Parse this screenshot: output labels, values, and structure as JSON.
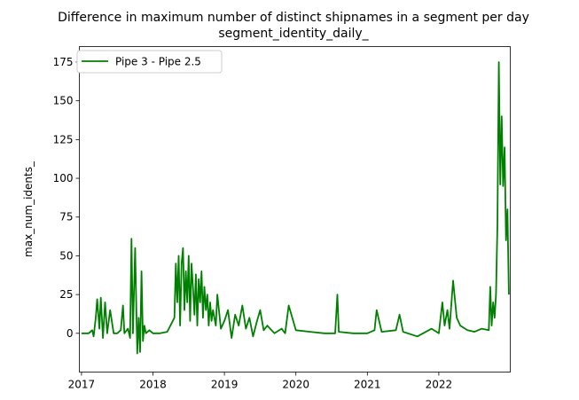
{
  "chart_data": {
    "type": "line",
    "title": "Difference in maximum number of distinct shipnames in a segment per day",
    "subtitle": "segment_identity_daily_",
    "xlabel": "",
    "ylabel": "max_num_idents_",
    "x_tick_labels": [
      "2017",
      "2018",
      "2019",
      "2020",
      "2021",
      "2022"
    ],
    "y_tick_labels": [
      "0",
      "25",
      "50",
      "75",
      "100",
      "125",
      "150",
      "175"
    ],
    "x_ticks": [
      2017,
      2018,
      2019,
      2020,
      2021,
      2022
    ],
    "y_ticks": [
      0,
      25,
      50,
      75,
      100,
      125,
      150,
      175
    ],
    "xlim": [
      2016.97,
      2023.0
    ],
    "ylim": [
      -25,
      185
    ],
    "grid": false,
    "legend_position": "upper-left",
    "series": [
      {
        "name": "Pipe 3 - Pipe 2.5",
        "color": "#008000",
        "x": [
          2017.0,
          2017.1,
          2017.15,
          2017.17,
          2017.2,
          2017.22,
          2017.25,
          2017.27,
          2017.3,
          2017.33,
          2017.36,
          2017.4,
          2017.45,
          2017.5,
          2017.55,
          2017.58,
          2017.6,
          2017.65,
          2017.68,
          2017.7,
          2017.72,
          2017.75,
          2017.78,
          2017.8,
          2017.82,
          2017.84,
          2017.86,
          2017.88,
          2017.9,
          2017.95,
          2018.0,
          2018.05,
          2018.1,
          2018.2,
          2018.3,
          2018.32,
          2018.34,
          2018.36,
          2018.38,
          2018.4,
          2018.42,
          2018.44,
          2018.46,
          2018.48,
          2018.5,
          2018.52,
          2018.54,
          2018.56,
          2018.58,
          2018.6,
          2018.62,
          2018.64,
          2018.66,
          2018.68,
          2018.7,
          2018.72,
          2018.74,
          2018.76,
          2018.78,
          2018.8,
          2018.82,
          2018.84,
          2018.86,
          2018.88,
          2018.9,
          2018.95,
          2019.0,
          2019.05,
          2019.1,
          2019.15,
          2019.2,
          2019.25,
          2019.3,
          2019.35,
          2019.4,
          2019.45,
          2019.5,
          2019.55,
          2019.6,
          2019.7,
          2019.8,
          2019.85,
          2019.9,
          2020.0,
          2020.2,
          2020.4,
          2020.55,
          2020.58,
          2020.6,
          2020.8,
          2021.0,
          2021.1,
          2021.13,
          2021.2,
          2021.4,
          2021.45,
          2021.5,
          2021.7,
          2021.9,
          2022.0,
          2022.05,
          2022.08,
          2022.1,
          2022.12,
          2022.15,
          2022.2,
          2022.25,
          2022.3,
          2022.4,
          2022.5,
          2022.6,
          2022.7,
          2022.72,
          2022.74,
          2022.76,
          2022.78,
          2022.8,
          2022.82,
          2022.84,
          2022.86,
          2022.88,
          2022.9,
          2022.92,
          2022.94,
          2022.96,
          2022.98
        ],
        "values": [
          0,
          0,
          2,
          -2,
          10,
          22,
          3,
          23,
          -3,
          20,
          0,
          15,
          0,
          0,
          2,
          18,
          0,
          3,
          -3,
          61,
          0,
          55,
          -13,
          10,
          -12,
          40,
          -5,
          5,
          0,
          2,
          0,
          0,
          0,
          1,
          10,
          45,
          20,
          50,
          5,
          45,
          55,
          15,
          40,
          20,
          50,
          8,
          45,
          30,
          12,
          38,
          5,
          35,
          20,
          40,
          10,
          30,
          15,
          25,
          5,
          20,
          8,
          15,
          10,
          5,
          25,
          3,
          8,
          15,
          -3,
          12,
          5,
          18,
          3,
          10,
          -2,
          7,
          15,
          2,
          5,
          0,
          3,
          0,
          18,
          2,
          1,
          0,
          0,
          25,
          1,
          0,
          0,
          2,
          15,
          1,
          2,
          12,
          1,
          -2,
          3,
          0,
          20,
          5,
          10,
          15,
          3,
          34,
          10,
          5,
          2,
          1,
          3,
          2,
          30,
          5,
          20,
          10,
          25,
          70,
          175,
          96,
          140,
          95,
          120,
          60,
          80,
          25
        ]
      }
    ]
  }
}
